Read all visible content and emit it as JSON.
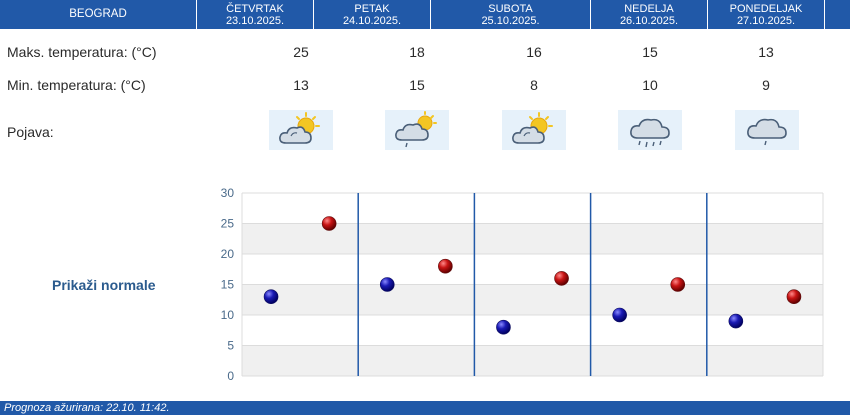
{
  "header": {
    "city": "BEOGRAD",
    "days": [
      {
        "name": "ČETVRTAK",
        "date": "23.10.2025."
      },
      {
        "name": "PETAK",
        "date": "24.10.2025."
      },
      {
        "name": "SUBOTA",
        "date": "25.10.2025."
      },
      {
        "name": "NEDELJA",
        "date": "26.10.2025."
      },
      {
        "name": "PONEDELJAK",
        "date": "27.10.2025."
      }
    ]
  },
  "rows": {
    "max_label": "Maks. temperatura: (°C)",
    "min_label": "Min. temperatura: (°C)",
    "phenomenon_label": "Pojava:"
  },
  "max_values": [
    "25",
    "18",
    "16",
    "15",
    "13"
  ],
  "min_values": [
    "13",
    "15",
    "8",
    "10",
    "9"
  ],
  "icons": [
    "partly-cloudy-sun-icon",
    "partly-cloudy-sun-drizzle-icon",
    "partly-cloudy-sun-icon",
    "cloud-rain-icon",
    "cloud-drizzle-icon"
  ],
  "normals_link": "Prikaži normale",
  "colors": {
    "header_bg": "#2159a8",
    "link": "#2b5b8e",
    "max_dot": "#c81414",
    "min_dot": "#1a1ab4",
    "grid_band": "#f0f0f0",
    "day_divider": "#2159a8"
  },
  "chart_data": {
    "type": "scatter",
    "categories": [
      "23.10.2025.",
      "24.10.2025.",
      "25.10.2025.",
      "26.10.2025.",
      "27.10.2025."
    ],
    "series": [
      {
        "values": [
          13,
          15,
          8,
          10,
          9
        ]
      },
      {
        "values": [
          25,
          18,
          16,
          15,
          13
        ]
      }
    ],
    "ylim": [
      0,
      30
    ],
    "yticks": [
      "0",
      "5",
      "10",
      "15",
      "20",
      "25",
      "30"
    ],
    "grid": true
  },
  "footer": {
    "text": "Prognoza ažurirana:  22.10. 11:42."
  }
}
